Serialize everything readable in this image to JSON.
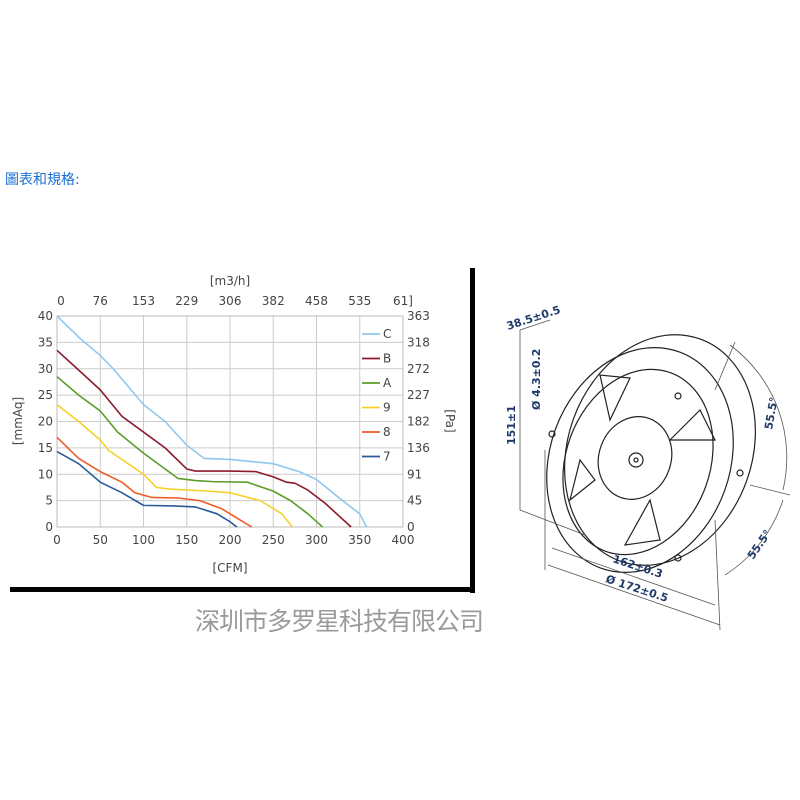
{
  "heading": "圖表和規格:",
  "watermark": "深圳市多罗星科技有限公司",
  "chart_data": {
    "type": "line",
    "xlabel": "[CFM]",
    "x2label": "[m3/h]",
    "ylabel": "[mmAq]",
    "y2label": "[Pa]",
    "xlim": [
      0,
      400
    ],
    "ylim": [
      0,
      40
    ],
    "xticks": [
      "0",
      "50",
      "100",
      "150",
      "200",
      "250",
      "300",
      "350",
      "400"
    ],
    "x2ticks": [
      "0",
      "76",
      "153",
      "229",
      "306",
      "382",
      "458",
      "535",
      "61]"
    ],
    "yticks": [
      "0",
      "5",
      "10",
      "15",
      "20",
      "25",
      "30",
      "35",
      "40"
    ],
    "y2ticks": [
      "0",
      "45",
      "91",
      "136",
      "182",
      "227",
      "272",
      "318",
      "363"
    ],
    "grid": true,
    "legend": "top-right",
    "series": [
      {
        "name": "C",
        "color": "#8ec8f0",
        "points": [
          [
            0,
            40
          ],
          [
            25,
            36
          ],
          [
            50,
            32.5
          ],
          [
            65,
            30
          ],
          [
            100,
            23.2
          ],
          [
            125,
            20
          ],
          [
            150,
            15.5
          ],
          [
            170,
            13
          ],
          [
            200,
            12.8
          ],
          [
            250,
            12
          ],
          [
            280,
            10.5
          ],
          [
            300,
            9
          ],
          [
            330,
            5
          ],
          [
            350,
            2.5
          ],
          [
            358,
            0
          ]
        ]
      },
      {
        "name": "B",
        "color": "#8b1a2b",
        "points": [
          [
            0,
            33.5
          ],
          [
            30,
            29
          ],
          [
            50,
            26
          ],
          [
            75,
            21
          ],
          [
            100,
            18
          ],
          [
            125,
            15
          ],
          [
            150,
            11
          ],
          [
            160,
            10.6
          ],
          [
            200,
            10.6
          ],
          [
            230,
            10.5
          ],
          [
            250,
            9.5
          ],
          [
            265,
            8.5
          ],
          [
            275,
            8.3
          ],
          [
            290,
            7
          ],
          [
            310,
            4.5
          ],
          [
            340,
            0
          ]
        ]
      },
      {
        "name": "A",
        "color": "#5a9e2a",
        "points": [
          [
            0,
            28.5
          ],
          [
            25,
            25
          ],
          [
            50,
            22
          ],
          [
            70,
            18
          ],
          [
            100,
            14
          ],
          [
            125,
            11
          ],
          [
            140,
            9.2
          ],
          [
            160,
            8.8
          ],
          [
            180,
            8.6
          ],
          [
            220,
            8.5
          ],
          [
            250,
            6.8
          ],
          [
            270,
            5
          ],
          [
            290,
            2.5
          ],
          [
            307,
            0
          ]
        ]
      },
      {
        "name": "9",
        "color": "#f5d02a",
        "points": [
          [
            0,
            23.2
          ],
          [
            25,
            20
          ],
          [
            50,
            16.5
          ],
          [
            60,
            14.5
          ],
          [
            100,
            10
          ],
          [
            115,
            7.5
          ],
          [
            130,
            7.2
          ],
          [
            175,
            6.8
          ],
          [
            200,
            6.5
          ],
          [
            235,
            5
          ],
          [
            260,
            2.5
          ],
          [
            272,
            0
          ]
        ]
      },
      {
        "name": "8",
        "color": "#f05a28",
        "points": [
          [
            0,
            17
          ],
          [
            25,
            13
          ],
          [
            50,
            10.5
          ],
          [
            75,
            8.5
          ],
          [
            90,
            6.5
          ],
          [
            110,
            5.6
          ],
          [
            140,
            5.5
          ],
          [
            165,
            5
          ],
          [
            190,
            3.5
          ],
          [
            210,
            1.5
          ],
          [
            225,
            0
          ]
        ]
      },
      {
        "name": "7",
        "color": "#2a5a9a",
        "points": [
          [
            0,
            14.3
          ],
          [
            25,
            12
          ],
          [
            50,
            8.5
          ],
          [
            75,
            6.5
          ],
          [
            100,
            4.1
          ],
          [
            135,
            4
          ],
          [
            160,
            3.8
          ],
          [
            185,
            2.5
          ],
          [
            200,
            1
          ],
          [
            208,
            0
          ]
        ]
      }
    ]
  },
  "drawing": {
    "depth": "38.5±0.5",
    "hole": "Ø 4.3±0.2",
    "height": "151±1",
    "width": "162±0.3",
    "diameter": "Ø 172±0.5",
    "angle_top": "55.5°",
    "angle_bottom": "55.5°"
  }
}
